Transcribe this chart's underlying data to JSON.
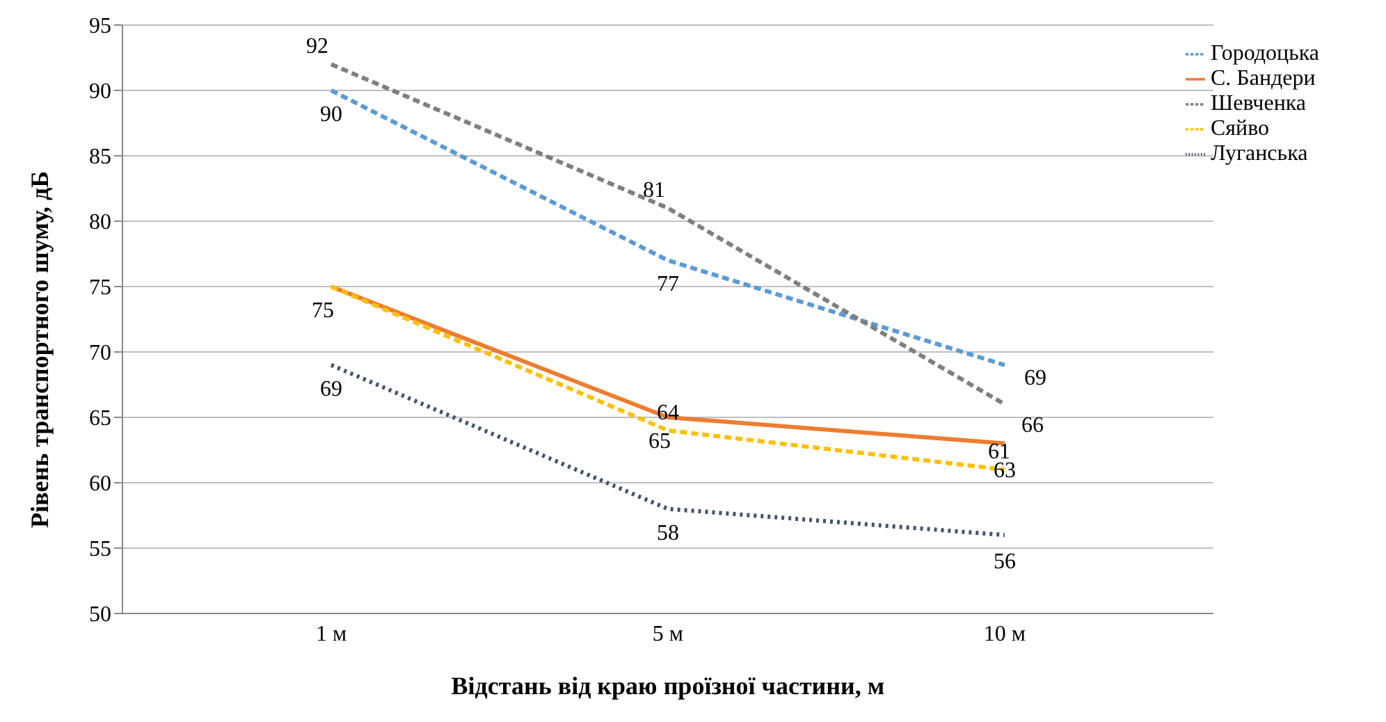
{
  "chart_data": {
    "type": "line",
    "xlabel": "Відстань від краю проїзної частини, м",
    "ylabel": "Рівень транспортного шуму, дБ",
    "categories": [
      "1 м",
      "5 м",
      "10 м"
    ],
    "series": [
      {
        "name": "Городоцька",
        "color": "#5b9bd5",
        "line_style": "dashed",
        "values": [
          90,
          77,
          69
        ],
        "value_labels": [
          "90",
          "77",
          "69"
        ]
      },
      {
        "name": "С. Бандери",
        "color": "#ed7d31",
        "line_style": "solid",
        "values": [
          75,
          65,
          63
        ],
        "value_labels": [
          "75",
          "65",
          "63"
        ]
      },
      {
        "name": "Шевченка",
        "color": "#7f7f7f",
        "line_style": "dashed",
        "values": [
          92,
          81,
          66
        ],
        "value_labels": [
          "92",
          "81",
          "66"
        ]
      },
      {
        "name": "Сяйво",
        "color": "#ffc000",
        "line_style": "dashed",
        "values": [
          75,
          64,
          61
        ],
        "value_labels": [
          null,
          "64",
          "61"
        ]
      },
      {
        "name": "Луганська",
        "color": "#44546a",
        "line_style": "dotted",
        "values": [
          69,
          58,
          56
        ],
        "value_labels": [
          "69",
          "58",
          "56"
        ]
      }
    ],
    "ylim": [
      50,
      95
    ],
    "yticks": [
      50,
      55,
      60,
      65,
      70,
      75,
      80,
      85,
      90,
      95
    ],
    "grid": "y",
    "legend": "top right",
    "marker": "none"
  }
}
